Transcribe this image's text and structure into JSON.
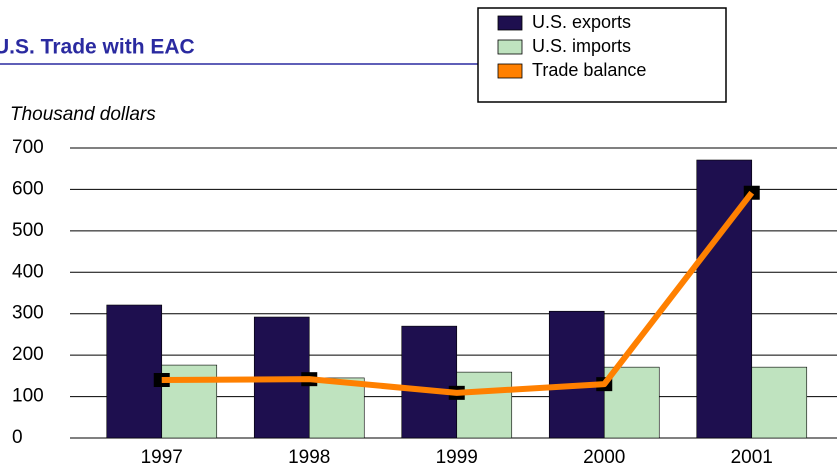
{
  "chart_data": {
    "type": "bar",
    "title": "U.S. Trade with EAC",
    "y_label": "Thousand dollars",
    "categories": [
      "1997",
      "1998",
      "1999",
      "2000",
      "2001"
    ],
    "series": [
      {
        "name": "U.S. exports",
        "color": "#1e0f4f",
        "type": "bar",
        "values": [
          321,
          292,
          270,
          306,
          671
        ]
      },
      {
        "name": "U.S. imports",
        "color": "#bfe3bf",
        "type": "bar",
        "values": [
          176,
          145,
          159,
          171,
          171
        ]
      },
      {
        "name": "Trade balance",
        "color": "#ff8000",
        "type": "line",
        "values": [
          140,
          142,
          109,
          130,
          592
        ]
      }
    ],
    "ylim": [
      0,
      700
    ],
    "yticks": [
      0,
      100,
      200,
      300,
      400,
      500,
      600,
      700
    ],
    "grid": true
  }
}
